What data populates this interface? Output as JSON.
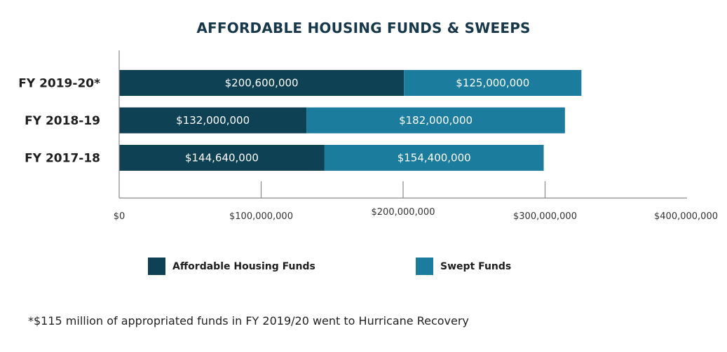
{
  "chart_data": {
    "type": "bar",
    "orientation": "horizontal",
    "stacked": true,
    "title": "AFFORDABLE HOUSING FUNDS & SWEEPS",
    "categories": [
      "FY 2019-20*",
      "FY 2018-19",
      "FY 2017-18"
    ],
    "series": [
      {
        "name": "Affordable Housing Funds",
        "color": "#0f4154",
        "values": [
          200600000,
          132000000,
          144640000
        ],
        "labels": [
          "$200,600,000",
          "$132,000,000",
          "$144,640,000"
        ]
      },
      {
        "name": "Swept Funds",
        "color": "#1b7c9d",
        "values": [
          125000000,
          182000000,
          154400000
        ],
        "labels": [
          "$125,000,000",
          "$182,000,000",
          "$154,400,000"
        ]
      }
    ],
    "xlim": [
      0,
      400000000
    ],
    "xticks": [
      0,
      100000000,
      200000000,
      300000000,
      400000000
    ],
    "xtick_labels": [
      "$0",
      "$100,000,000",
      "$200,000,000",
      "$300,000,000",
      "$400,000,000"
    ],
    "xlabel": "",
    "ylabel": "",
    "grid": false,
    "legend_position": "bottom"
  },
  "footnote": "*$115 million of appropriated funds in FY 2019/20 went to Hurricane Recovery"
}
